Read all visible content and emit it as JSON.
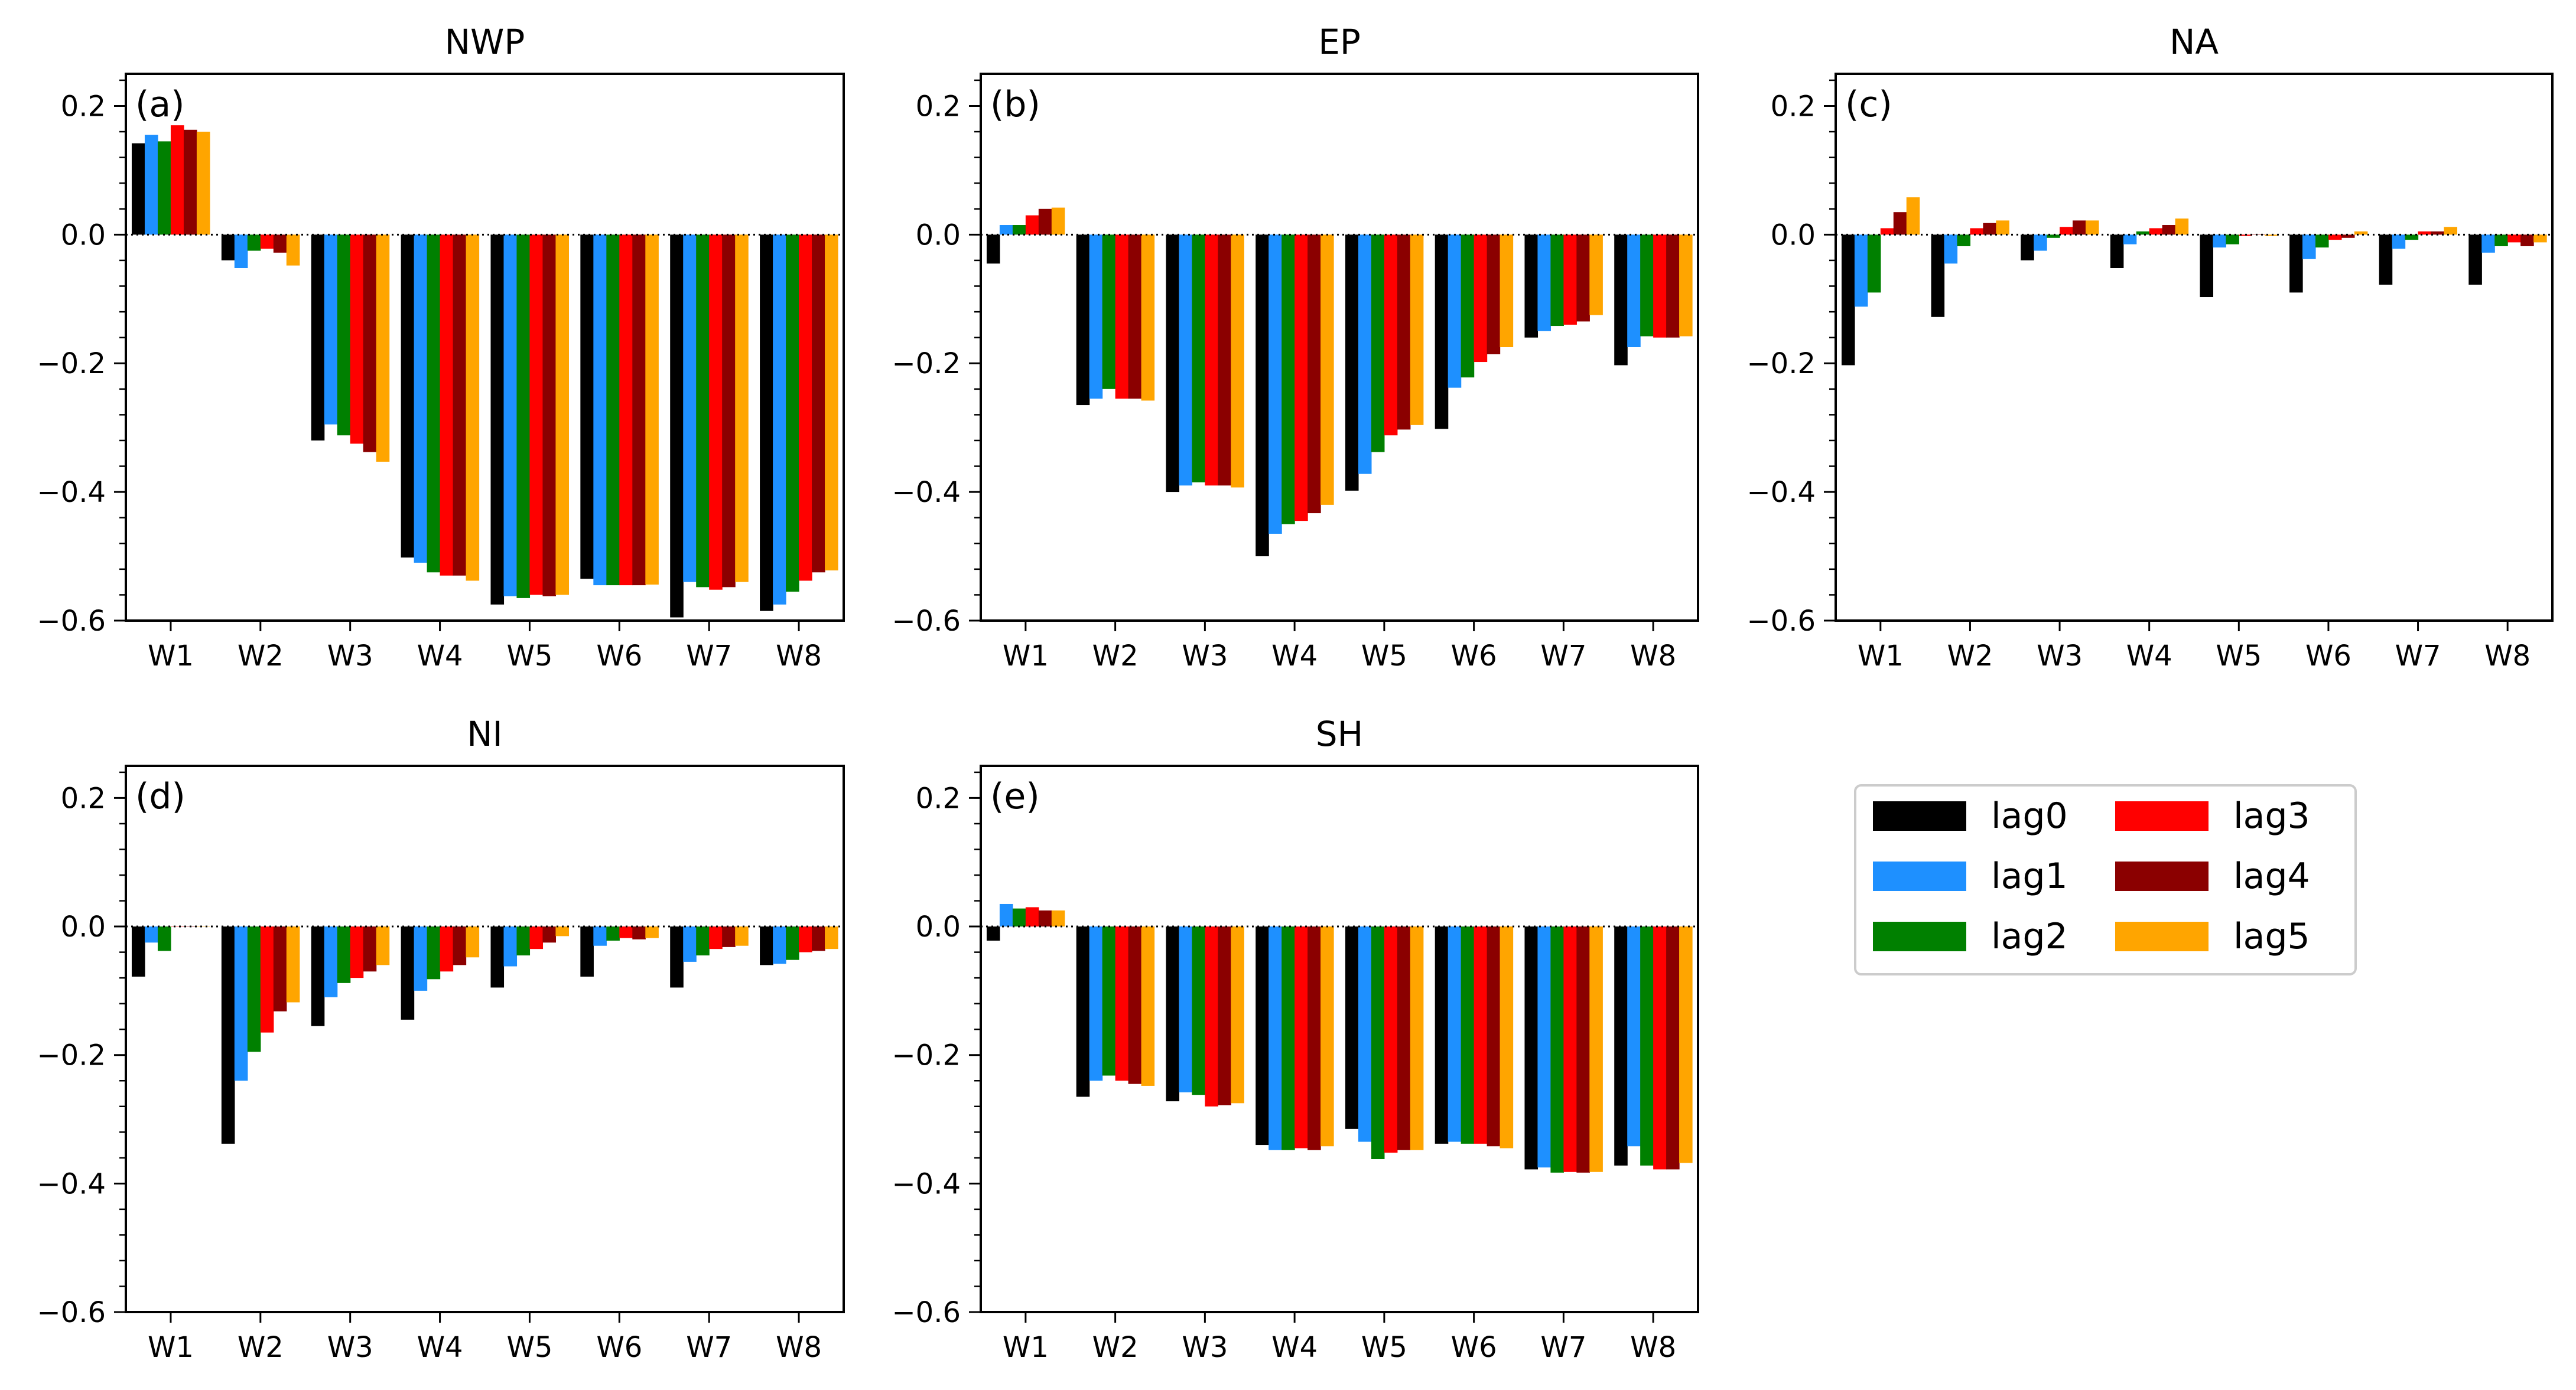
{
  "colors": {
    "lag0": "#000000",
    "lag1": "#1E90FF",
    "lag2": "#008000",
    "lag3": "#FF0000",
    "lag4": "#8B0000",
    "lag5": "#FFA500"
  },
  "legend": {
    "placement": "right of bottom row",
    "columns": 2,
    "entries": [
      "lag0",
      "lag1",
      "lag2",
      "lag3",
      "lag4",
      "lag5"
    ]
  },
  "chart_data": [
    {
      "type": "bar",
      "title": "NWP",
      "panel_label": "(a)",
      "categories": [
        "W1",
        "W2",
        "W3",
        "W4",
        "W5",
        "W6",
        "W7",
        "W8"
      ],
      "ylim": [
        -0.6,
        0.25
      ],
      "yticks": [
        0.2,
        0.0,
        -0.2,
        -0.4,
        -0.6
      ],
      "ytick_labels": [
        "0.2",
        "0.0",
        "−0.2",
        "−0.4",
        "−0.6"
      ],
      "zero_line": "dotted",
      "grid": false,
      "series": [
        {
          "name": "lag0",
          "values": [
            0.142,
            -0.04,
            -0.32,
            -0.502,
            -0.575,
            -0.535,
            -0.595,
            -0.585
          ]
        },
        {
          "name": "lag1",
          "values": [
            0.155,
            -0.052,
            -0.295,
            -0.51,
            -0.562,
            -0.545,
            -0.54,
            -0.575
          ]
        },
        {
          "name": "lag2",
          "values": [
            0.145,
            -0.025,
            -0.312,
            -0.525,
            -0.565,
            -0.545,
            -0.548,
            -0.555
          ]
        },
        {
          "name": "lag3",
          "values": [
            0.17,
            -0.022,
            -0.325,
            -0.53,
            -0.56,
            -0.545,
            -0.552,
            -0.538
          ]
        },
        {
          "name": "lag4",
          "values": [
            0.163,
            -0.028,
            -0.338,
            -0.53,
            -0.562,
            -0.545,
            -0.548,
            -0.525
          ]
        },
        {
          "name": "lag5",
          "values": [
            0.16,
            -0.048,
            -0.353,
            -0.538,
            -0.56,
            -0.544,
            -0.54,
            -0.522
          ]
        }
      ]
    },
    {
      "type": "bar",
      "title": "EP",
      "panel_label": "(b)",
      "categories": [
        "W1",
        "W2",
        "W3",
        "W4",
        "W5",
        "W6",
        "W7",
        "W8"
      ],
      "ylim": [
        -0.6,
        0.25
      ],
      "yticks": [
        0.2,
        0.0,
        -0.2,
        -0.4,
        -0.6
      ],
      "ytick_labels": [
        "0.2",
        "0.0",
        "−0.2",
        "−0.4",
        "−0.6"
      ],
      "zero_line": "dotted",
      "grid": false,
      "series": [
        {
          "name": "lag0",
          "values": [
            -0.045,
            -0.265,
            -0.4,
            -0.5,
            -0.398,
            -0.302,
            -0.16,
            -0.203
          ]
        },
        {
          "name": "lag1",
          "values": [
            0.015,
            -0.255,
            -0.39,
            -0.465,
            -0.372,
            -0.238,
            -0.15,
            -0.175
          ]
        },
        {
          "name": "lag2",
          "values": [
            0.015,
            -0.24,
            -0.385,
            -0.45,
            -0.338,
            -0.222,
            -0.142,
            -0.158
          ]
        },
        {
          "name": "lag3",
          "values": [
            0.03,
            -0.255,
            -0.39,
            -0.445,
            -0.312,
            -0.198,
            -0.14,
            -0.16
          ]
        },
        {
          "name": "lag4",
          "values": [
            0.04,
            -0.255,
            -0.39,
            -0.433,
            -0.303,
            -0.186,
            -0.135,
            -0.16
          ]
        },
        {
          "name": "lag5",
          "values": [
            0.042,
            -0.258,
            -0.393,
            -0.42,
            -0.296,
            -0.175,
            -0.125,
            -0.158
          ]
        }
      ]
    },
    {
      "type": "bar",
      "title": "NA",
      "panel_label": "(c)",
      "categories": [
        "W1",
        "W2",
        "W3",
        "W4",
        "W5",
        "W6",
        "W7",
        "W8"
      ],
      "ylim": [
        -0.6,
        0.25
      ],
      "yticks": [
        0.2,
        0.0,
        -0.2,
        -0.4,
        -0.6
      ],
      "ytick_labels": [
        "0.2",
        "0.0",
        "−0.2",
        "−0.4",
        "−0.6"
      ],
      "zero_line": "dotted",
      "grid": false,
      "series": [
        {
          "name": "lag0",
          "values": [
            -0.203,
            -0.128,
            -0.04,
            -0.052,
            -0.097,
            -0.09,
            -0.078,
            -0.078
          ]
        },
        {
          "name": "lag1",
          "values": [
            -0.112,
            -0.045,
            -0.025,
            -0.015,
            -0.02,
            -0.038,
            -0.022,
            -0.028
          ]
        },
        {
          "name": "lag2",
          "values": [
            -0.09,
            -0.018,
            -0.005,
            0.005,
            -0.015,
            -0.02,
            -0.008,
            -0.018
          ]
        },
        {
          "name": "lag3",
          "values": [
            0.01,
            0.01,
            0.012,
            0.01,
            -0.002,
            -0.008,
            0.005,
            -0.012
          ]
        },
        {
          "name": "lag4",
          "values": [
            0.035,
            0.018,
            0.022,
            0.015,
            0.0,
            -0.005,
            0.005,
            -0.018
          ]
        },
        {
          "name": "lag5",
          "values": [
            0.058,
            0.022,
            0.022,
            0.025,
            -0.002,
            0.005,
            0.012,
            -0.012
          ]
        }
      ]
    },
    {
      "type": "bar",
      "title": "NI",
      "panel_label": "(d)",
      "categories": [
        "W1",
        "W2",
        "W3",
        "W4",
        "W5",
        "W6",
        "W7",
        "W8"
      ],
      "ylim": [
        -0.6,
        0.25
      ],
      "yticks": [
        0.2,
        0.0,
        -0.2,
        -0.4,
        -0.6
      ],
      "ytick_labels": [
        "0.2",
        "0.0",
        "−0.2",
        "−0.4",
        "−0.6"
      ],
      "zero_line": "dotted",
      "grid": false,
      "series": [
        {
          "name": "lag0",
          "values": [
            -0.078,
            -0.338,
            -0.155,
            -0.145,
            -0.095,
            -0.078,
            -0.095,
            -0.06
          ]
        },
        {
          "name": "lag1",
          "values": [
            -0.025,
            -0.24,
            -0.11,
            -0.1,
            -0.062,
            -0.03,
            -0.055,
            -0.058
          ]
        },
        {
          "name": "lag2",
          "values": [
            -0.038,
            -0.195,
            -0.088,
            -0.082,
            -0.045,
            -0.022,
            -0.045,
            -0.052
          ]
        },
        {
          "name": "lag3",
          "values": [
            0.0,
            -0.165,
            -0.08,
            -0.07,
            -0.035,
            -0.018,
            -0.035,
            -0.04
          ]
        },
        {
          "name": "lag4",
          "values": [
            0.0,
            -0.132,
            -0.07,
            -0.06,
            -0.025,
            -0.02,
            -0.032,
            -0.038
          ]
        },
        {
          "name": "lag5",
          "values": [
            0.0,
            -0.118,
            -0.06,
            -0.048,
            -0.015,
            -0.018,
            -0.03,
            -0.035
          ]
        }
      ]
    },
    {
      "type": "bar",
      "title": "SH",
      "panel_label": "(e)",
      "categories": [
        "W1",
        "W2",
        "W3",
        "W4",
        "W5",
        "W6",
        "W7",
        "W8"
      ],
      "ylim": [
        -0.6,
        0.25
      ],
      "yticks": [
        0.2,
        0.0,
        -0.2,
        -0.4,
        -0.6
      ],
      "ytick_labels": [
        "0.2",
        "0.0",
        "−0.2",
        "−0.4",
        "−0.6"
      ],
      "zero_line": "dotted",
      "grid": false,
      "series": [
        {
          "name": "lag0",
          "values": [
            -0.022,
            -0.265,
            -0.272,
            -0.34,
            -0.315,
            -0.338,
            -0.378,
            -0.372
          ]
        },
        {
          "name": "lag1",
          "values": [
            0.035,
            -0.24,
            -0.258,
            -0.348,
            -0.335,
            -0.335,
            -0.375,
            -0.342
          ]
        },
        {
          "name": "lag2",
          "values": [
            0.028,
            -0.232,
            -0.262,
            -0.348,
            -0.362,
            -0.338,
            -0.383,
            -0.372
          ]
        },
        {
          "name": "lag3",
          "values": [
            0.03,
            -0.24,
            -0.28,
            -0.345,
            -0.352,
            -0.338,
            -0.382,
            -0.378
          ]
        },
        {
          "name": "lag4",
          "values": [
            0.025,
            -0.245,
            -0.278,
            -0.348,
            -0.348,
            -0.342,
            -0.383,
            -0.378
          ]
        },
        {
          "name": "lag5",
          "values": [
            0.025,
            -0.248,
            -0.275,
            -0.342,
            -0.348,
            -0.345,
            -0.382,
            -0.368
          ]
        }
      ]
    }
  ]
}
